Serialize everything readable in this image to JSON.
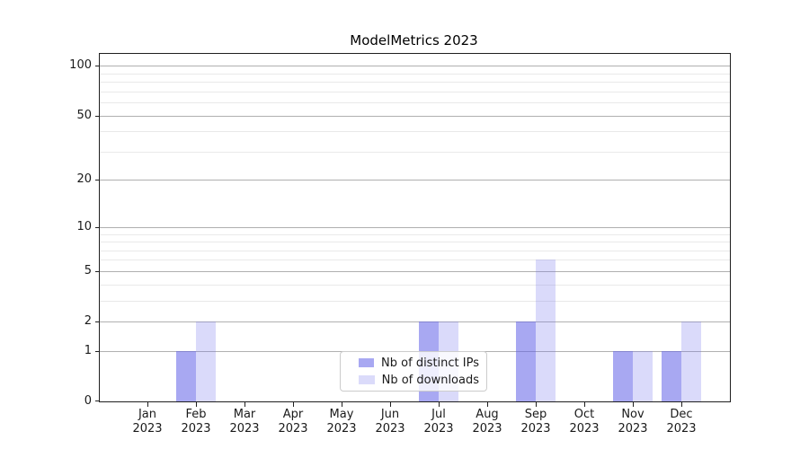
{
  "title": "ModelMetrics 2023",
  "chart_data": {
    "type": "bar",
    "title": "ModelMetrics 2023",
    "categories": [
      "Jan",
      "Feb",
      "Mar",
      "Apr",
      "May",
      "Jun",
      "Jul",
      "Aug",
      "Sep",
      "Oct",
      "Nov",
      "Dec"
    ],
    "category_year": "2023",
    "series": [
      {
        "name": "Nb of distinct IPs",
        "values": [
          0,
          1,
          0,
          0,
          0,
          0,
          2,
          0,
          2,
          0,
          1,
          1
        ],
        "bar_color": "rgba(96,96,232,0.55)",
        "legend_color": "#a8a8f2"
      },
      {
        "name": "Nb of downloads",
        "values": [
          0,
          2,
          0,
          0,
          0,
          0,
          2,
          0,
          6,
          0,
          1,
          2
        ],
        "bar_color": "rgba(120,120,235,0.27)",
        "legend_color": "#dbdbfa"
      }
    ],
    "yscale": "log1p",
    "y_major_ticks": [
      0,
      1,
      2,
      5,
      10,
      20,
      50,
      100
    ],
    "y_minor_ticks": [
      3,
      4,
      6,
      7,
      8,
      9,
      30,
      40,
      60,
      70,
      80,
      90
    ],
    "ylim": [
      0,
      118
    ],
    "xlabel": "",
    "ylabel": "",
    "grid": true,
    "legend_position": "lower center",
    "major_grid_color": "#b0b0b0",
    "minor_grid_color": "#e9e9e9"
  }
}
